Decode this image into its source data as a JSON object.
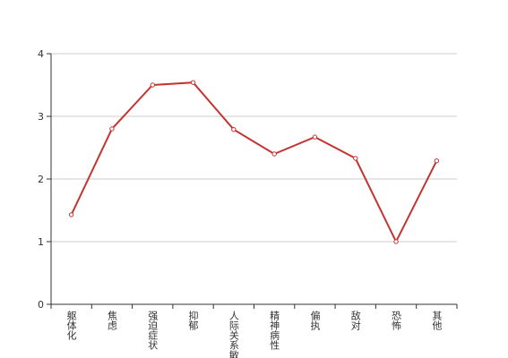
{
  "chart_data": {
    "type": "line",
    "categories": [
      "躯体化",
      "焦虑",
      "强迫症状",
      "抑郁",
      "人际关系敏感",
      "精神病性",
      "偏执",
      "敌对",
      "恐怖",
      "其他"
    ],
    "values": [
      1.43,
      2.8,
      3.5,
      3.54,
      2.79,
      2.4,
      2.67,
      2.33,
      1.0,
      2.29
    ],
    "color": "#c23531",
    "ylim": [
      0,
      4
    ],
    "yticks": [
      0,
      1,
      2,
      3,
      4
    ],
    "grid": true
  }
}
